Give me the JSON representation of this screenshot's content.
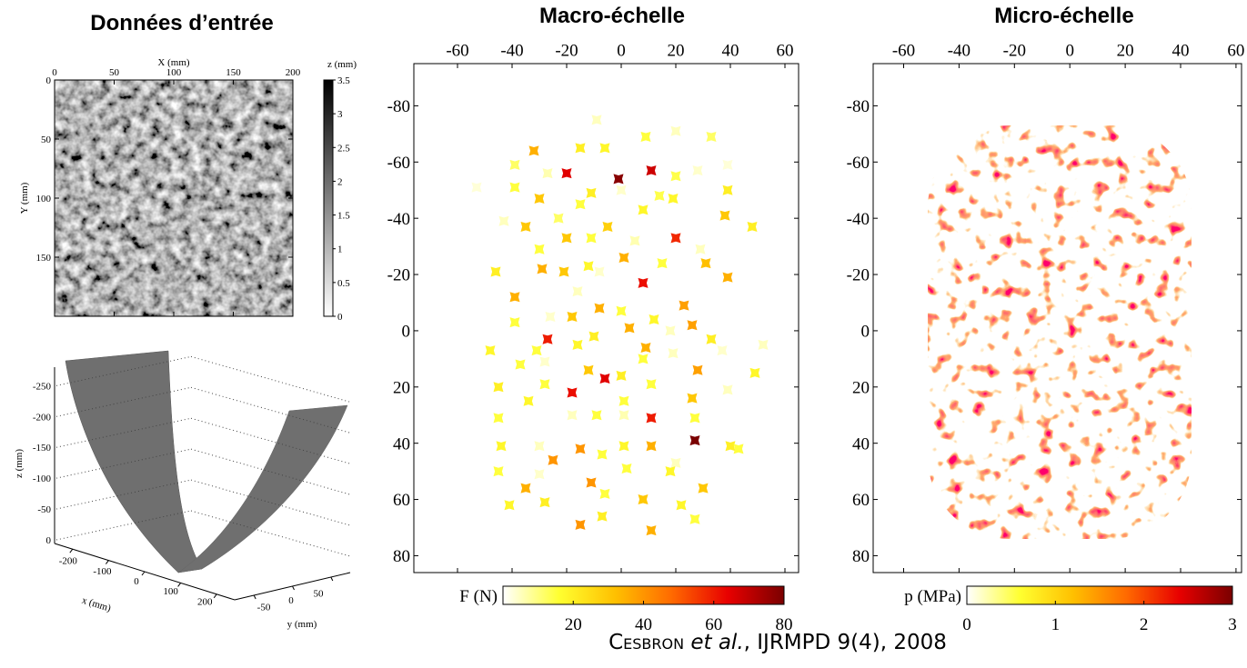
{
  "chart_data": [
    {
      "type": "image",
      "title": "Données d’entrée",
      "xlabel": "X (mm)",
      "ylabel": "Y (mm)",
      "xlim": [
        0,
        200
      ],
      "ylim": [
        0,
        200
      ],
      "xticks": [
        0,
        50,
        100,
        150,
        200
      ],
      "yticks": [
        0,
        50,
        100,
        150
      ],
      "yaxis_inverted": true,
      "colorbar": {
        "label": "z (mm)",
        "clim": [
          0,
          3.5
        ],
        "ticks": [
          0,
          0.5,
          1,
          1.5,
          2,
          2.5,
          3,
          3.5
        ],
        "colormap": [
          "#ffffff",
          "#000000"
        ],
        "orientation": "vertical"
      }
    },
    {
      "type": "surface",
      "xlabel": "x (mm)",
      "ylabel": "y (mm)",
      "zlabel": "z (mm)",
      "xlim": [
        -250,
        250
      ],
      "ylim": [
        -75,
        75
      ],
      "zlim": [
        -280,
        0
      ],
      "xticks": [
        -200,
        -100,
        0,
        100,
        200
      ],
      "yticks": [
        -50,
        0,
        50
      ],
      "zticks": [
        -250,
        -200,
        -150,
        -100,
        -50,
        0
      ],
      "color": "#6f6f6f"
    },
    {
      "type": "scatter",
      "title": "Macro-échelle",
      "xlim": [
        -76,
        65
      ],
      "ylim": [
        -95,
        86
      ],
      "xticks": [
        -60,
        -40,
        -20,
        0,
        20,
        40,
        60
      ],
      "yticks": [
        -80,
        -60,
        -40,
        -20,
        0,
        20,
        40,
        60,
        80
      ],
      "yaxis_inverted": true,
      "x": [
        -9,
        -32,
        -15,
        -6,
        9,
        20,
        33,
        -20,
        -1,
        11,
        -39,
        -27,
        20,
        28,
        39,
        -39,
        -11,
        0,
        14,
        19,
        39,
        -53,
        -30,
        -15,
        8,
        -35,
        -23,
        -43,
        -5,
        20,
        38,
        48,
        -30,
        -20,
        -11,
        5,
        29,
        -29,
        -12,
        1,
        15,
        31,
        -46,
        -21,
        -8,
        39,
        8,
        -16,
        -39,
        23,
        0,
        -8,
        -26,
        -18,
        -39,
        12,
        3,
        26,
        -27,
        18,
        -10,
        9,
        33,
        -48,
        -31,
        -16,
        19,
        37,
        52,
        -37,
        -28,
        -12,
        -6,
        0,
        8,
        28,
        49,
        -45,
        -28,
        -18,
        11,
        26,
        39,
        -34,
        1,
        11,
        -45,
        -18,
        -9,
        1,
        27,
        27,
        -44,
        -30,
        -15,
        -7,
        1,
        11,
        40,
        43,
        -25,
        20,
        -45,
        -30,
        -11,
        2,
        18,
        30,
        -35,
        -41,
        -28,
        -6,
        8,
        22,
        27,
        -15,
        -7,
        11
      ],
      "y": [
        -75,
        -64,
        -65,
        -65,
        -69,
        -71,
        -69,
        -56,
        -54,
        -57,
        -59,
        -56,
        -55,
        -57,
        -59,
        -51,
        -49,
        -50,
        -48,
        -47,
        -50,
        -51,
        -47,
        -45,
        -43,
        -37,
        -40,
        -39,
        -37,
        -33,
        -41,
        -37,
        -29,
        -33,
        -33,
        -32,
        -29,
        -22,
        -23,
        -26,
        -24,
        -24,
        -21,
        -21,
        -21,
        -19,
        -17,
        -14,
        -12,
        -9,
        -7,
        -8,
        -5,
        -5,
        -3,
        -4,
        -1,
        -2,
        3,
        0,
        2,
        6,
        3,
        7,
        7,
        5,
        8,
        7,
        5,
        12,
        11,
        14,
        17,
        16,
        10,
        14,
        15,
        20,
        19,
        22,
        19,
        24,
        21,
        25,
        25,
        31,
        31,
        30,
        30,
        30,
        31,
        39,
        41,
        41,
        42,
        44,
        41,
        41,
        41,
        42,
        46,
        47,
        50,
        51,
        54,
        49,
        50,
        56,
        56,
        62,
        61,
        58,
        60,
        62,
        67,
        69,
        66,
        71
      ],
      "values": [
        5,
        35,
        20,
        18,
        15,
        5,
        12,
        65,
        78,
        68,
        12,
        6,
        14,
        4,
        3,
        15,
        20,
        4,
        14,
        18,
        20,
        3,
        30,
        15,
        18,
        30,
        12,
        5,
        28,
        58,
        30,
        20,
        15,
        30,
        15,
        6,
        5,
        35,
        18,
        35,
        15,
        32,
        20,
        30,
        4,
        35,
        62,
        5,
        35,
        38,
        15,
        35,
        4,
        30,
        15,
        18,
        35,
        38,
        60,
        5,
        20,
        35,
        20,
        18,
        15,
        18,
        5,
        4,
        5,
        15,
        4,
        30,
        65,
        20,
        15,
        38,
        18,
        20,
        15,
        62,
        15,
        30,
        5,
        18,
        15,
        60,
        15,
        5,
        15,
        6,
        15,
        80,
        18,
        5,
        40,
        15,
        18,
        35,
        20,
        15,
        40,
        5,
        15,
        4,
        40,
        15,
        18,
        30,
        35,
        18,
        20,
        15,
        30,
        18,
        15,
        40,
        20,
        35
      ],
      "colorbar": {
        "label": "F (N)",
        "clim": [
          0,
          80
        ],
        "ticks": [
          20,
          40,
          60,
          80
        ],
        "colormap": [
          "#ffffff",
          "#ffff30",
          "#ffc000",
          "#ff6a00",
          "#e80000",
          "#7a0000"
        ],
        "orientation": "horizontal"
      }
    },
    {
      "type": "image",
      "title": "Micro-échelle",
      "xlim": [
        -71,
        62
      ],
      "ylim": [
        -95,
        86
      ],
      "xticks": [
        -60,
        -40,
        -20,
        0,
        20,
        40,
        60
      ],
      "yticks": [
        -80,
        -60,
        -40,
        -20,
        0,
        20,
        40,
        60,
        80
      ],
      "yaxis_inverted": true,
      "colorbar": {
        "label": "p (MPa)",
        "clim": [
          0,
          3
        ],
        "ticks": [
          0,
          1,
          2,
          3
        ],
        "colormap": [
          "#ffffff",
          "#ffff30",
          "#ffc000",
          "#ff6a00",
          "#e80000",
          "#7a0000"
        ],
        "orientation": "horizontal"
      }
    }
  ],
  "caption": {
    "author": "Cesbron",
    "etal": "et al.",
    "reference": ", IJRMPD 9(4), 2008"
  }
}
